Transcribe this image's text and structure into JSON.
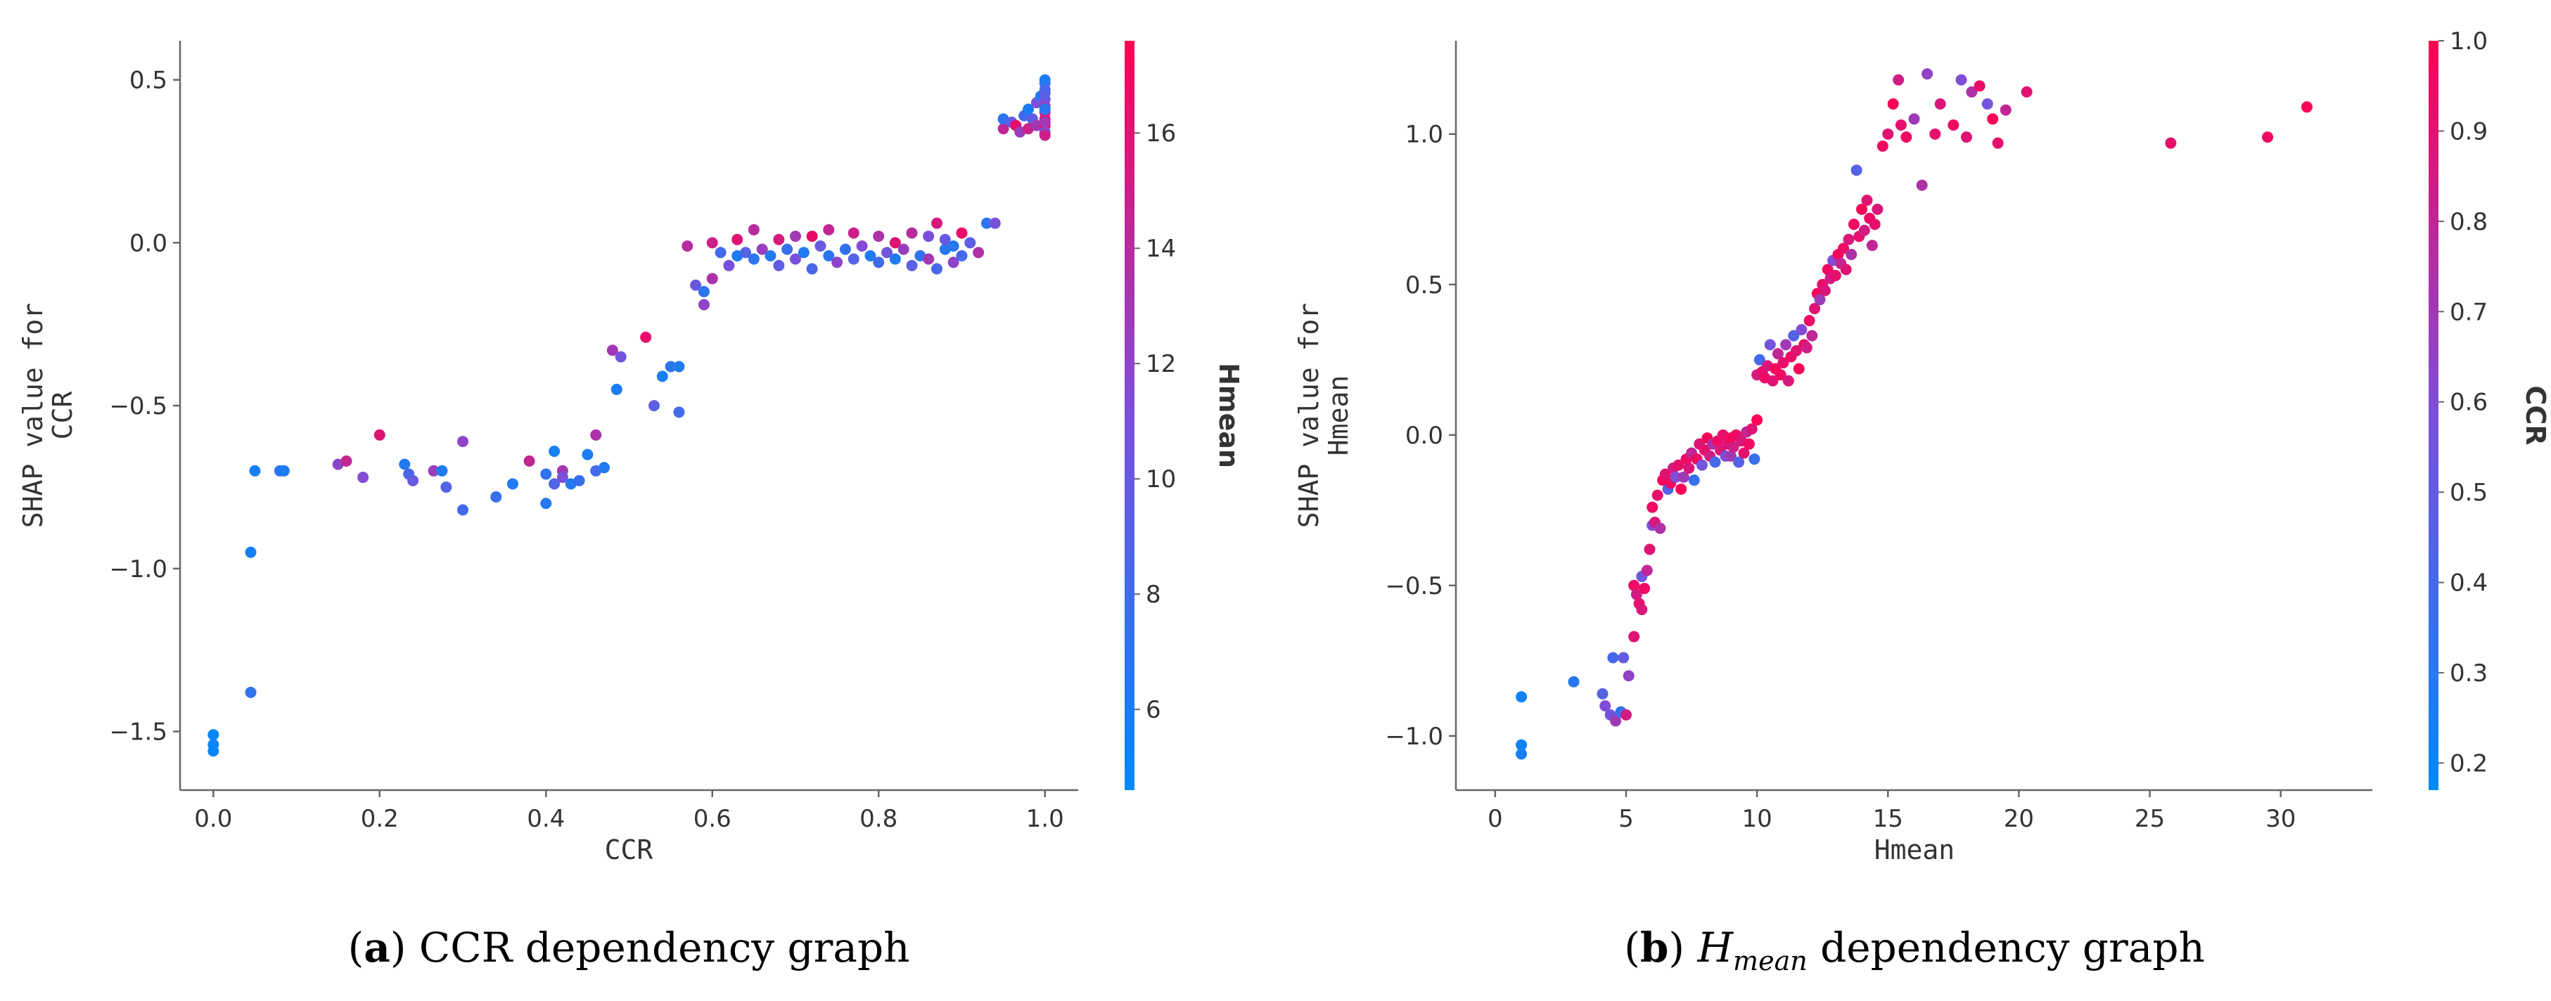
{
  "charts": [
    {
      "id": "a",
      "type": "scatter",
      "caption_prefix": "a",
      "caption_text": "CCR dependency graph",
      "xlabel": "CCR",
      "ylabel_lines": [
        "SHAP value for",
        "CCR"
      ],
      "colorbar_label": "Hmean",
      "xlim": [
        -0.04,
        1.04
      ],
      "ylim": [
        -1.68,
        0.62
      ],
      "xticks": [
        0.0,
        0.2,
        0.4,
        0.6,
        0.8,
        1.0
      ],
      "xtick_labels": [
        "0.0",
        "0.2",
        "0.4",
        "0.6",
        "0.8",
        "1.0"
      ],
      "yticks": [
        -1.5,
        -1.0,
        -0.5,
        0.0,
        0.5
      ],
      "ytick_labels": [
        "−1.5",
        "−1.0",
        "−0.5",
        "0.0",
        "0.5"
      ],
      "color_range": [
        4.6,
        17.6
      ],
      "colorbar_ticks": [
        6,
        8,
        10,
        12,
        14,
        16
      ],
      "colorbar_tick_labels": [
        "6",
        "8",
        "10",
        "12",
        "14",
        "16"
      ],
      "points": [
        [
          0.0,
          -1.51,
          5.0
        ],
        [
          0.0,
          -1.54,
          5.2
        ],
        [
          0.0,
          -1.56,
          5.0
        ],
        [
          0.045,
          -0.95,
          5.8
        ],
        [
          0.045,
          -1.38,
          7.0
        ],
        [
          0.05,
          -0.7,
          5.6
        ],
        [
          0.08,
          -0.7,
          6.8
        ],
        [
          0.085,
          -0.7,
          6.0
        ],
        [
          0.15,
          -0.68,
          12.0
        ],
        [
          0.16,
          -0.67,
          14.5
        ],
        [
          0.18,
          -0.72,
          11.5
        ],
        [
          0.2,
          -0.59,
          16.0
        ],
        [
          0.23,
          -0.68,
          6.5
        ],
        [
          0.235,
          -0.71,
          8.5
        ],
        [
          0.24,
          -0.73,
          10.0
        ],
        [
          0.265,
          -0.7,
          12.5
        ],
        [
          0.275,
          -0.7,
          6.2
        ],
        [
          0.28,
          -0.75,
          9.0
        ],
        [
          0.3,
          -0.82,
          8.0
        ],
        [
          0.3,
          -0.61,
          12.0
        ],
        [
          0.34,
          -0.78,
          7.5
        ],
        [
          0.36,
          -0.74,
          6.3
        ],
        [
          0.38,
          -0.67,
          14.5
        ],
        [
          0.4,
          -0.71,
          7.0
        ],
        [
          0.4,
          -0.8,
          6.5
        ],
        [
          0.41,
          -0.64,
          5.8
        ],
        [
          0.41,
          -0.74,
          8.8
        ],
        [
          0.42,
          -0.7,
          13.0
        ],
        [
          0.42,
          -0.72,
          11.0
        ],
        [
          0.43,
          -0.74,
          6.3
        ],
        [
          0.44,
          -0.73,
          7.5
        ],
        [
          0.45,
          -0.65,
          6.0
        ],
        [
          0.46,
          -0.7,
          8.0
        ],
        [
          0.46,
          -0.59,
          13.5
        ],
        [
          0.47,
          -0.69,
          6.5
        ],
        [
          0.48,
          -0.33,
          13.0
        ],
        [
          0.485,
          -0.45,
          6.0
        ],
        [
          0.49,
          -0.35,
          10.5
        ],
        [
          0.52,
          -0.29,
          16.5
        ],
        [
          0.53,
          -0.5,
          9.5
        ],
        [
          0.54,
          -0.41,
          6.0
        ],
        [
          0.55,
          -0.38,
          7.0
        ],
        [
          0.56,
          -0.52,
          8.0
        ],
        [
          0.56,
          -0.38,
          6.2
        ],
        [
          0.57,
          -0.01,
          14.0
        ],
        [
          0.58,
          -0.13,
          10.0
        ],
        [
          0.59,
          -0.15,
          7.0
        ],
        [
          0.59,
          -0.19,
          12.0
        ],
        [
          0.6,
          -0.11,
          13.5
        ],
        [
          0.6,
          0.0,
          15.0
        ],
        [
          0.61,
          -0.03,
          8.0
        ],
        [
          0.62,
          -0.07,
          11.0
        ],
        [
          0.63,
          0.01,
          16.0
        ],
        [
          0.63,
          -0.04,
          6.0
        ],
        [
          0.64,
          -0.03,
          9.0
        ],
        [
          0.65,
          0.04,
          14.0
        ],
        [
          0.65,
          -0.05,
          7.0
        ],
        [
          0.66,
          -0.02,
          12.5
        ],
        [
          0.67,
          -0.04,
          6.5
        ],
        [
          0.68,
          0.01,
          15.5
        ],
        [
          0.68,
          -0.07,
          9.5
        ],
        [
          0.69,
          -0.02,
          7.5
        ],
        [
          0.7,
          -0.05,
          11.0
        ],
        [
          0.7,
          0.02,
          13.0
        ],
        [
          0.71,
          -0.03,
          6.3
        ],
        [
          0.72,
          -0.08,
          8.5
        ],
        [
          0.72,
          0.02,
          16.5
        ],
        [
          0.73,
          -0.01,
          10.0
        ],
        [
          0.74,
          -0.04,
          6.8
        ],
        [
          0.74,
          0.04,
          14.5
        ],
        [
          0.75,
          -0.06,
          12.0
        ],
        [
          0.76,
          -0.02,
          7.3
        ],
        [
          0.77,
          0.03,
          15.0
        ],
        [
          0.77,
          -0.05,
          9.0
        ],
        [
          0.78,
          -0.01,
          11.5
        ],
        [
          0.79,
          -0.04,
          6.5
        ],
        [
          0.8,
          -0.06,
          8.0
        ],
        [
          0.8,
          0.02,
          13.5
        ],
        [
          0.81,
          -0.03,
          10.5
        ],
        [
          0.82,
          -0.05,
          6.2
        ],
        [
          0.82,
          0.0,
          16.0
        ],
        [
          0.83,
          -0.02,
          12.5
        ],
        [
          0.84,
          -0.07,
          9.5
        ],
        [
          0.84,
          0.03,
          14.0
        ],
        [
          0.85,
          -0.04,
          7.0
        ],
        [
          0.86,
          0.02,
          11.0
        ],
        [
          0.86,
          -0.05,
          13.0
        ],
        [
          0.87,
          -0.08,
          8.5
        ],
        [
          0.87,
          0.06,
          15.5
        ],
        [
          0.88,
          -0.02,
          6.5
        ],
        [
          0.88,
          0.01,
          10.0
        ],
        [
          0.89,
          -0.06,
          12.0
        ],
        [
          0.89,
          -0.01,
          6.8
        ],
        [
          0.9,
          -0.04,
          8.0
        ],
        [
          0.9,
          0.03,
          16.5
        ],
        [
          0.91,
          0.0,
          9.5
        ],
        [
          0.92,
          -0.03,
          13.5
        ],
        [
          0.93,
          0.06,
          7.0
        ],
        [
          0.94,
          0.06,
          11.0
        ],
        [
          0.95,
          0.35,
          14.5
        ],
        [
          0.95,
          0.38,
          7.0
        ],
        [
          0.96,
          0.37,
          10.0
        ],
        [
          0.965,
          0.36,
          16.5
        ],
        [
          0.97,
          0.34,
          12.5
        ],
        [
          0.975,
          0.39,
          8.0
        ],
        [
          0.98,
          0.35,
          15.0
        ],
        [
          0.98,
          0.41,
          6.0
        ],
        [
          0.985,
          0.38,
          9.5
        ],
        [
          0.99,
          0.36,
          13.0
        ],
        [
          0.99,
          0.43,
          11.0
        ],
        [
          0.995,
          0.45,
          6.5
        ],
        [
          1.0,
          0.47,
          7.0
        ],
        [
          1.0,
          0.49,
          8.5
        ],
        [
          1.0,
          0.44,
          10.0
        ],
        [
          1.0,
          0.42,
          12.0
        ],
        [
          1.0,
          0.4,
          14.0
        ],
        [
          1.0,
          0.38,
          15.5
        ],
        [
          1.0,
          0.36,
          16.8
        ],
        [
          1.0,
          0.34,
          11.0
        ],
        [
          1.0,
          0.5,
          6.3
        ],
        [
          1.0,
          0.46,
          9.0
        ],
        [
          1.0,
          0.41,
          6.8
        ],
        [
          1.0,
          0.37,
          13.0
        ],
        [
          1.0,
          0.33,
          15.0
        ]
      ]
    },
    {
      "id": "b",
      "type": "scatter",
      "caption_prefix": "b",
      "caption_var": "H",
      "caption_sub": "mean",
      "caption_text": "dependency graph",
      "xlabel": "Hmean",
      "ylabel_lines": [
        "SHAP value for",
        "Hmean"
      ],
      "colorbar_label": "CCR",
      "xlim": [
        -1.5,
        33.5
      ],
      "ylim": [
        -1.18,
        1.31
      ],
      "xticks": [
        0,
        5,
        10,
        15,
        20,
        25,
        30
      ],
      "xtick_labels": [
        "0",
        "5",
        "10",
        "15",
        "20",
        "25",
        "30"
      ],
      "yticks": [
        -1.0,
        -0.5,
        0.0,
        0.5,
        1.0
      ],
      "ytick_labels": [
        "−1.0",
        "−0.5",
        "0.0",
        "0.5",
        "1.0"
      ],
      "color_range": [
        0.17,
        1.0
      ],
      "colorbar_ticks": [
        0.2,
        0.3,
        0.4,
        0.5,
        0.6,
        0.7,
        0.8,
        0.9,
        1.0
      ],
      "colorbar_tick_labels": [
        "0.2",
        "0.3",
        "0.4",
        "0.5",
        "0.6",
        "0.7",
        "0.8",
        "0.9",
        "1.0"
      ],
      "points": [
        [
          1.0,
          -0.87,
          0.22
        ],
        [
          1.0,
          -1.03,
          0.22
        ],
        [
          1.0,
          -1.06,
          0.25
        ],
        [
          3.0,
          -0.82,
          0.3
        ],
        [
          4.1,
          -0.86,
          0.45
        ],
        [
          4.2,
          -0.9,
          0.6
        ],
        [
          4.4,
          -0.93,
          0.55
        ],
        [
          4.5,
          -0.74,
          0.4
        ],
        [
          4.6,
          -0.95,
          0.7
        ],
        [
          4.8,
          -0.92,
          0.35
        ],
        [
          4.9,
          -0.74,
          0.5
        ],
        [
          5.0,
          -0.93,
          0.85
        ],
        [
          5.1,
          -0.8,
          0.65
        ],
        [
          5.3,
          -0.67,
          0.9
        ],
        [
          5.3,
          -0.5,
          0.95
        ],
        [
          5.4,
          -0.53,
          0.85
        ],
        [
          5.5,
          -0.56,
          0.92
        ],
        [
          5.6,
          -0.58,
          0.88
        ],
        [
          5.6,
          -0.47,
          0.55
        ],
        [
          5.7,
          -0.51,
          0.95
        ],
        [
          5.8,
          -0.45,
          0.8
        ],
        [
          5.9,
          -0.38,
          0.9
        ],
        [
          6.0,
          -0.3,
          0.6
        ],
        [
          6.0,
          -0.24,
          0.95
        ],
        [
          6.1,
          -0.29,
          0.88
        ],
        [
          6.2,
          -0.2,
          0.92
        ],
        [
          6.3,
          -0.31,
          0.75
        ],
        [
          6.4,
          -0.15,
          0.98
        ],
        [
          6.5,
          -0.13,
          0.9
        ],
        [
          6.6,
          -0.18,
          0.45
        ],
        [
          6.7,
          -0.16,
          0.95
        ],
        [
          6.8,
          -0.11,
          0.85
        ],
        [
          6.9,
          -0.14,
          0.6
        ],
        [
          7.0,
          -0.1,
          0.92
        ],
        [
          7.1,
          -0.18,
          0.98
        ],
        [
          7.2,
          -0.14,
          0.7
        ],
        [
          7.3,
          -0.08,
          0.95
        ],
        [
          7.4,
          -0.11,
          0.88
        ],
        [
          7.5,
          -0.06,
          0.8
        ],
        [
          7.6,
          -0.15,
          0.35
        ],
        [
          7.7,
          -0.08,
          0.95
        ],
        [
          7.8,
          -0.03,
          0.9
        ],
        [
          7.9,
          -0.1,
          0.55
        ],
        [
          8.0,
          -0.05,
          0.92
        ],
        [
          8.1,
          -0.01,
          0.98
        ],
        [
          8.2,
          -0.07,
          0.85
        ],
        [
          8.3,
          -0.03,
          0.75
        ],
        [
          8.4,
          -0.09,
          0.4
        ],
        [
          8.5,
          -0.02,
          0.95
        ],
        [
          8.6,
          -0.05,
          0.88
        ],
        [
          8.7,
          0.0,
          0.92
        ],
        [
          8.8,
          -0.07,
          0.6
        ],
        [
          8.9,
          -0.03,
          0.9
        ],
        [
          9.0,
          -0.01,
          0.98
        ],
        [
          9.0,
          -0.07,
          0.7
        ],
        [
          9.1,
          -0.04,
          0.85
        ],
        [
          9.2,
          0.0,
          0.95
        ],
        [
          9.3,
          -0.09,
          0.45
        ],
        [
          9.4,
          -0.02,
          0.88
        ],
        [
          9.5,
          -0.06,
          0.92
        ],
        [
          9.6,
          0.01,
          0.8
        ],
        [
          9.7,
          -0.03,
          0.95
        ],
        [
          9.8,
          0.02,
          0.9
        ],
        [
          9.9,
          -0.08,
          0.35
        ],
        [
          10.0,
          0.05,
          0.98
        ],
        [
          10.0,
          0.2,
          0.85
        ],
        [
          10.1,
          0.25,
          0.4
        ],
        [
          10.2,
          0.21,
          0.92
        ],
        [
          10.3,
          0.19,
          0.95
        ],
        [
          10.4,
          0.23,
          0.88
        ],
        [
          10.5,
          0.3,
          0.55
        ],
        [
          10.6,
          0.18,
          0.9
        ],
        [
          10.7,
          0.22,
          0.98
        ],
        [
          10.8,
          0.27,
          0.8
        ],
        [
          10.9,
          0.2,
          0.95
        ],
        [
          11.0,
          0.24,
          0.92
        ],
        [
          11.1,
          0.3,
          0.7
        ],
        [
          11.2,
          0.18,
          0.88
        ],
        [
          11.3,
          0.26,
          0.95
        ],
        [
          11.4,
          0.33,
          0.45
        ],
        [
          11.5,
          0.28,
          0.9
        ],
        [
          11.6,
          0.22,
          0.98
        ],
        [
          11.7,
          0.35,
          0.6
        ],
        [
          11.8,
          0.3,
          0.92
        ],
        [
          11.9,
          0.29,
          0.85
        ],
        [
          12.0,
          0.38,
          0.95
        ],
        [
          12.1,
          0.33,
          0.8
        ],
        [
          12.2,
          0.42,
          0.9
        ],
        [
          12.3,
          0.47,
          0.98
        ],
        [
          12.4,
          0.45,
          0.7
        ],
        [
          12.5,
          0.5,
          0.92
        ],
        [
          12.6,
          0.48,
          0.88
        ],
        [
          12.7,
          0.55,
          0.95
        ],
        [
          12.8,
          0.52,
          0.85
        ],
        [
          12.9,
          0.58,
          0.6
        ],
        [
          13.0,
          0.53,
          0.92
        ],
        [
          13.1,
          0.6,
          0.98
        ],
        [
          13.2,
          0.57,
          0.8
        ],
        [
          13.3,
          0.62,
          0.95
        ],
        [
          13.4,
          0.55,
          0.9
        ],
        [
          13.5,
          0.65,
          0.88
        ],
        [
          13.6,
          0.6,
          0.75
        ],
        [
          13.7,
          0.7,
          0.95
        ],
        [
          13.8,
          0.88,
          0.45
        ],
        [
          13.9,
          0.66,
          0.92
        ],
        [
          14.0,
          0.75,
          0.98
        ],
        [
          14.1,
          0.68,
          0.85
        ],
        [
          14.2,
          0.78,
          0.9
        ],
        [
          14.3,
          0.72,
          0.95
        ],
        [
          14.4,
          0.63,
          0.8
        ],
        [
          14.5,
          0.7,
          0.92
        ],
        [
          14.6,
          0.75,
          0.88
        ],
        [
          14.8,
          0.96,
          0.95
        ],
        [
          15.0,
          1.0,
          0.9
        ],
        [
          15.2,
          1.1,
          0.98
        ],
        [
          15.4,
          1.18,
          0.85
        ],
        [
          15.5,
          1.03,
          0.92
        ],
        [
          15.7,
          0.99,
          0.95
        ],
        [
          16.0,
          1.05,
          0.7
        ],
        [
          16.3,
          0.83,
          0.75
        ],
        [
          16.5,
          1.2,
          0.65
        ],
        [
          16.8,
          1.0,
          0.92
        ],
        [
          17.0,
          1.1,
          0.88
        ],
        [
          17.5,
          1.03,
          0.95
        ],
        [
          17.8,
          1.18,
          0.6
        ],
        [
          18.0,
          0.99,
          0.9
        ],
        [
          18.2,
          1.14,
          0.75
        ],
        [
          18.5,
          1.16,
          0.95
        ],
        [
          18.8,
          1.1,
          0.55
        ],
        [
          19.0,
          1.05,
          0.98
        ],
        [
          19.2,
          0.97,
          0.92
        ],
        [
          19.5,
          1.08,
          0.8
        ],
        [
          20.3,
          1.14,
          0.9
        ],
        [
          25.8,
          0.97,
          0.92
        ],
        [
          29.5,
          0.99,
          0.95
        ],
        [
          31.0,
          1.09,
          0.98
        ]
      ]
    }
  ]
}
